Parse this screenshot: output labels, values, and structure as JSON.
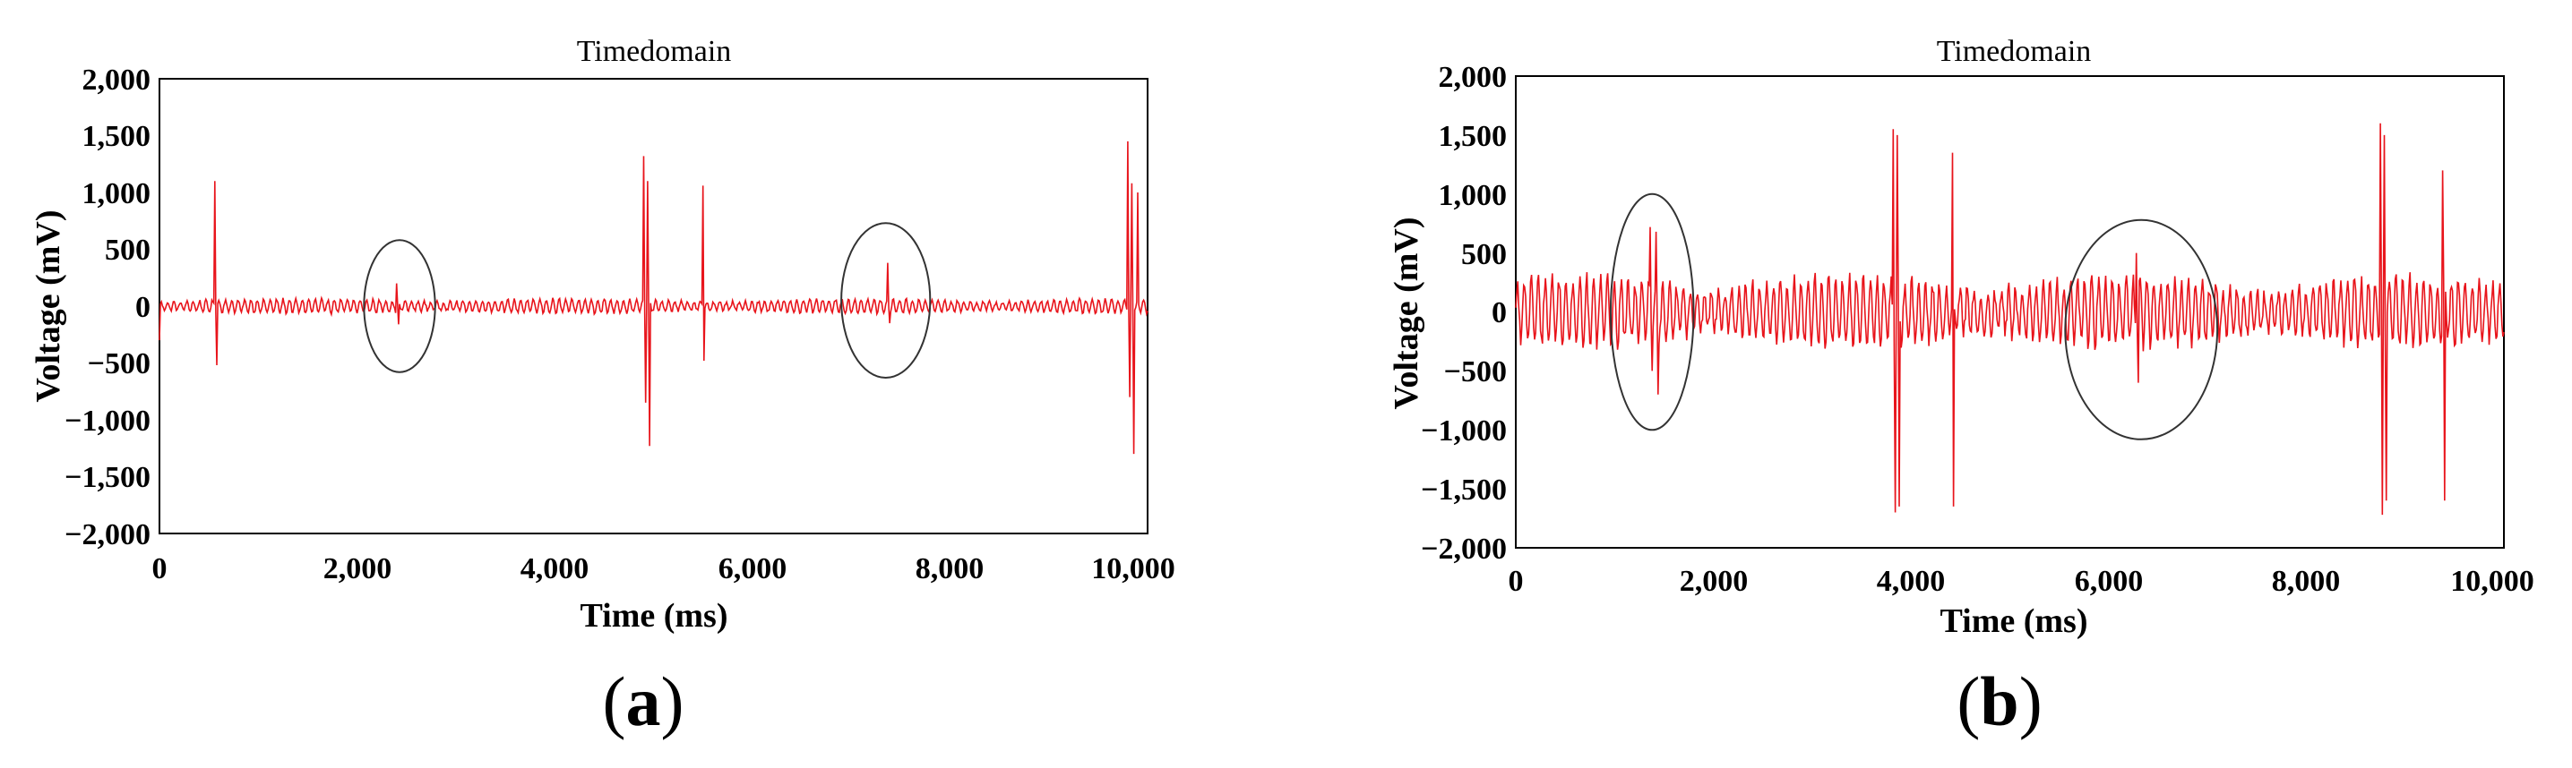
{
  "chart_data": [
    {
      "type": "line",
      "panel": "(a)",
      "title": "Timedomain",
      "xlabel": "Time (ms)",
      "ylabel": "Voltage (mV)",
      "xlim": [
        0,
        10000
      ],
      "ylim": [
        -2000,
        2000
      ],
      "xticks": [
        "0",
        "2,000",
        "4,000",
        "6,000",
        "8,000",
        "10,000"
      ],
      "yticks": [
        "2,000",
        "1,500",
        "1,000",
        "500",
        "0",
        "−500",
        "−1,000",
        "−1,500",
        "−2,000"
      ],
      "line_color": "#e8141b",
      "baseline_amplitude": 60,
      "oscillation_period": 65,
      "spikes": [
        {
          "x": 0,
          "y": -300
        },
        {
          "x": 560,
          "y": 1100
        },
        {
          "x": 580,
          "y": -520
        },
        {
          "x": 2400,
          "y": 200
        },
        {
          "x": 2420,
          "y": -160
        },
        {
          "x": 4900,
          "y": 1320
        },
        {
          "x": 4920,
          "y": -850
        },
        {
          "x": 4940,
          "y": 1100
        },
        {
          "x": 4960,
          "y": -1230
        },
        {
          "x": 5500,
          "y": 1060
        },
        {
          "x": 5510,
          "y": -480
        },
        {
          "x": 7370,
          "y": 380
        },
        {
          "x": 7390,
          "y": -150
        },
        {
          "x": 9800,
          "y": 1450
        },
        {
          "x": 9820,
          "y": -800
        },
        {
          "x": 9840,
          "y": 1080
        },
        {
          "x": 9860,
          "y": -1300
        },
        {
          "x": 9900,
          "y": 1000
        }
      ],
      "highlight_ellipses": [
        {
          "cx": 2430,
          "cy": 0,
          "rx": 360,
          "ry": 580
        },
        {
          "cx": 7350,
          "cy": 50,
          "rx": 450,
          "ry": 680
        }
      ]
    },
    {
      "type": "line",
      "panel": "(b)",
      "title": "Timedomain",
      "xlabel": "Time (ms)",
      "ylabel": "Voltage (mV)",
      "xlim": [
        0,
        10000
      ],
      "ylim": [
        -2000,
        2000
      ],
      "xticks": [
        "0",
        "2,000",
        "4,000",
        "6,000",
        "8,000",
        "10,000"
      ],
      "yticks": [
        "2,000",
        "1,500",
        "1,000",
        "500",
        "0",
        "−500",
        "−1,000",
        "−1,500",
        "−2,000"
      ],
      "line_color": "#e8141b",
      "baseline_amplitude": 280,
      "oscillation_period": 70,
      "spikes": [
        {
          "x": 1360,
          "y": 720
        },
        {
          "x": 1380,
          "y": -500
        },
        {
          "x": 1420,
          "y": 680
        },
        {
          "x": 1440,
          "y": -700
        },
        {
          "x": 3820,
          "y": 1550
        },
        {
          "x": 3840,
          "y": -1700
        },
        {
          "x": 3860,
          "y": 1500
        },
        {
          "x": 3880,
          "y": -1650
        },
        {
          "x": 4420,
          "y": 1350
        },
        {
          "x": 4430,
          "y": -1650
        },
        {
          "x": 6280,
          "y": 500
        },
        {
          "x": 6300,
          "y": -600
        },
        {
          "x": 8750,
          "y": 1600
        },
        {
          "x": 8770,
          "y": -1720
        },
        {
          "x": 8790,
          "y": 1500
        },
        {
          "x": 8810,
          "y": -1600
        },
        {
          "x": 9380,
          "y": 1200
        },
        {
          "x": 9400,
          "y": -1600
        }
      ],
      "highlight_ellipses": [
        {
          "cx": 1380,
          "cy": 0,
          "rx": 420,
          "ry": 1000
        },
        {
          "cx": 6330,
          "cy": -150,
          "rx": 770,
          "ry": 930
        }
      ]
    }
  ]
}
